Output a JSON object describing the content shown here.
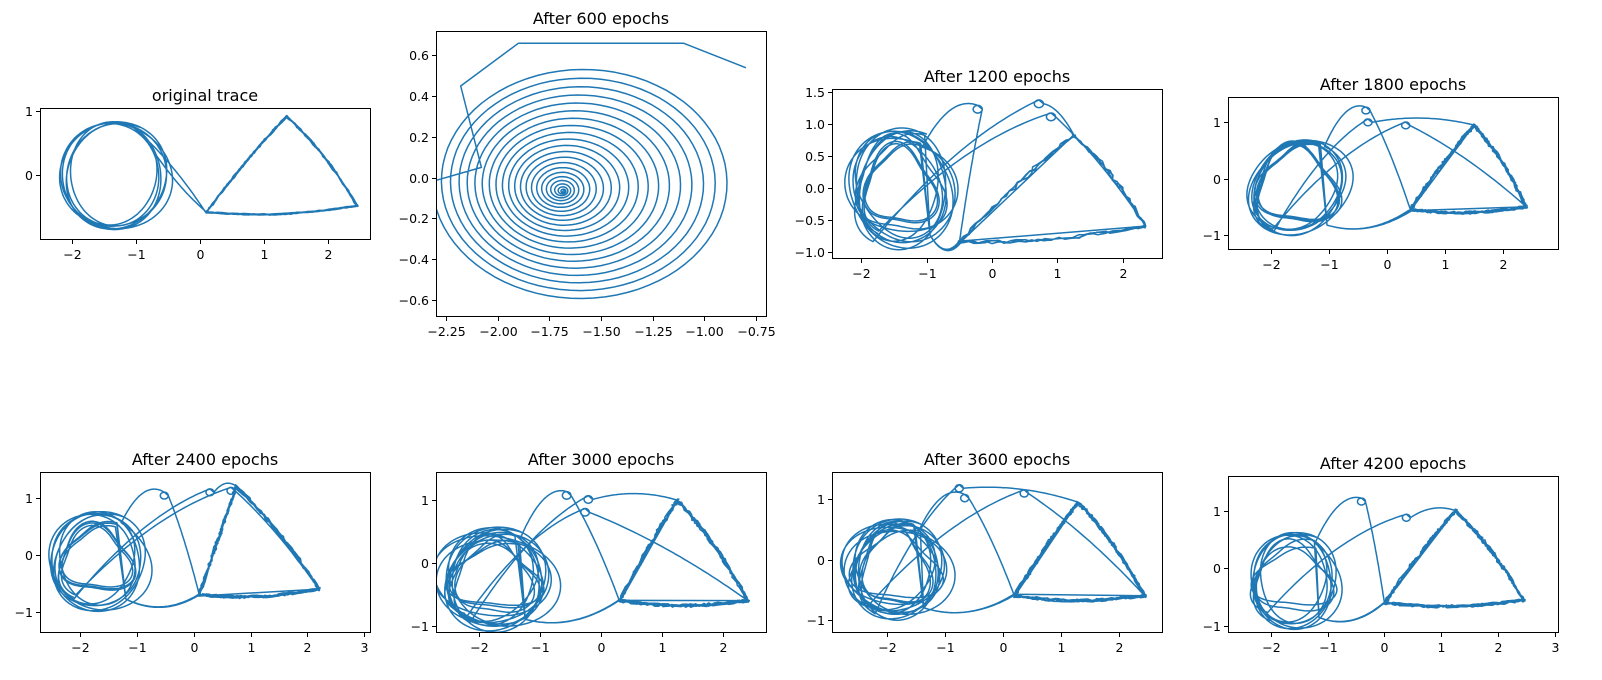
{
  "figure": {
    "line_color": "#1f77b4",
    "grid": false,
    "legend": "none"
  },
  "chart_data": [
    {
      "type": "line",
      "title": "original trace",
      "xlim": [
        -2.5,
        2.65
      ],
      "ylim": [
        -1.0,
        1.05
      ],
      "xticks": [
        -2,
        -1,
        0,
        1,
        2
      ],
      "yticks": [
        0,
        1
      ],
      "trace": {
        "kind": "original",
        "cx": -1.35,
        "cy": 0.0,
        "rx": 0.82,
        "ry": 0.78,
        "loops": 6,
        "tri": [
          [
            0.1,
            -0.58
          ],
          [
            1.35,
            0.92
          ],
          [
            2.45,
            -0.48
          ]
        ],
        "tri_loops": 7
      }
    },
    {
      "type": "line",
      "title": "After 600 epochs",
      "xlim": [
        -2.3,
        -0.7
      ],
      "ylim": [
        -0.68,
        0.72
      ],
      "xticks": [
        -2.25,
        -2.0,
        -1.75,
        -1.5,
        -1.25,
        -1.0,
        -0.75
      ],
      "yticks": [
        -0.6,
        -0.4,
        -0.2,
        0.0,
        0.2,
        0.4,
        0.6
      ],
      "trace": {
        "kind": "spiral",
        "cx": -1.68,
        "cy": -0.07,
        "r0": 0.58,
        "turns": 22,
        "start": [
          -0.8,
          0.54
        ],
        "lead": [
          [
            -1.1,
            0.66
          ],
          [
            -1.9,
            0.66
          ],
          [
            -2.18,
            0.45
          ],
          [
            -2.08,
            0.05
          ]
        ]
      }
    },
    {
      "type": "line",
      "title": "After 1200 epochs",
      "xlim": [
        -2.45,
        2.6
      ],
      "ylim": [
        -1.1,
        1.55
      ],
      "xticks": [
        -2,
        -1,
        0,
        1,
        2
      ],
      "yticks": [
        -1.0,
        -0.5,
        0.0,
        0.5,
        1.0,
        1.5
      ],
      "trace": {
        "kind": "mixed",
        "cx": -1.4,
        "cy": 0.0,
        "rx": 0.75,
        "ry": 0.82,
        "loops": 7,
        "tri": [
          [
            -0.5,
            -0.85
          ],
          [
            1.25,
            0.83
          ],
          [
            2.35,
            -0.6
          ]
        ],
        "tri_loops": 4,
        "wild": 3,
        "seed": 3
      }
    },
    {
      "type": "line",
      "title": "After 1800 epochs",
      "xlim": [
        -2.75,
        2.95
      ],
      "ylim": [
        -1.25,
        1.45
      ],
      "xticks": [
        -2,
        -1,
        0,
        1,
        2
      ],
      "yticks": [
        -1,
        0,
        1
      ],
      "trace": {
        "kind": "mixed",
        "cx": -1.55,
        "cy": -0.15,
        "rx": 0.85,
        "ry": 0.75,
        "loops": 5,
        "tri": [
          [
            0.4,
            -0.55
          ],
          [
            1.5,
            0.95
          ],
          [
            2.4,
            -0.5
          ]
        ],
        "tri_loops": 6,
        "wild": 3,
        "seed": 7
      }
    },
    {
      "type": "line",
      "title": "After 2400 epochs",
      "xlim": [
        -2.7,
        3.1
      ],
      "ylim": [
        -1.35,
        1.45
      ],
      "xticks": [
        -2,
        -1,
        0,
        1,
        2,
        3
      ],
      "yticks": [
        -1,
        0,
        1
      ],
      "trace": {
        "kind": "mixed",
        "cx": -1.7,
        "cy": -0.1,
        "rx": 0.85,
        "ry": 0.75,
        "loops": 6,
        "tri": [
          [
            0.1,
            -0.7
          ],
          [
            0.75,
            1.2
          ],
          [
            2.2,
            -0.6
          ]
        ],
        "tri_loops": 5,
        "wild": 3,
        "seed": 11
      }
    },
    {
      "type": "line",
      "title": "After 3000 epochs",
      "xlim": [
        -2.7,
        2.7
      ],
      "ylim": [
        -1.1,
        1.45
      ],
      "xticks": [
        -2,
        -1,
        0,
        1,
        2
      ],
      "yticks": [
        -1,
        0,
        1
      ],
      "trace": {
        "kind": "mixed",
        "cx": -1.75,
        "cy": -0.25,
        "rx": 0.85,
        "ry": 0.72,
        "loops": 9,
        "tri": [
          [
            0.3,
            -0.6
          ],
          [
            1.25,
            1.0
          ],
          [
            2.4,
            -0.6
          ]
        ],
        "tri_loops": 6,
        "wild": 3,
        "seed": 17
      }
    },
    {
      "type": "line",
      "title": "After 3600 epochs",
      "xlim": [
        -2.95,
        2.75
      ],
      "ylim": [
        -1.2,
        1.45
      ],
      "xticks": [
        -2,
        -1,
        0,
        1,
        2
      ],
      "yticks": [
        -1,
        0,
        1
      ],
      "trace": {
        "kind": "mixed",
        "cx": -1.85,
        "cy": -0.15,
        "rx": 0.8,
        "ry": 0.72,
        "loops": 9,
        "tri": [
          [
            0.2,
            -0.6
          ],
          [
            1.3,
            0.95
          ],
          [
            2.45,
            -0.6
          ]
        ],
        "tri_loops": 6,
        "wild": 3,
        "seed": 23
      }
    },
    {
      "type": "line",
      "title": "After 4200 epochs",
      "xlim": [
        -2.75,
        3.05
      ],
      "ylim": [
        -1.1,
        1.6
      ],
      "xticks": [
        -2,
        -1,
        0,
        1,
        2,
        3
      ],
      "yticks": [
        -1,
        0,
        1
      ],
      "trace": {
        "kind": "mixed",
        "cx": -1.6,
        "cy": -0.2,
        "rx": 0.75,
        "ry": 0.72,
        "loops": 6,
        "tri": [
          [
            0.0,
            -0.6
          ],
          [
            1.25,
            1.0
          ],
          [
            2.45,
            -0.55
          ]
        ],
        "tri_loops": 5,
        "wild": 2,
        "seed": 29
      }
    }
  ]
}
